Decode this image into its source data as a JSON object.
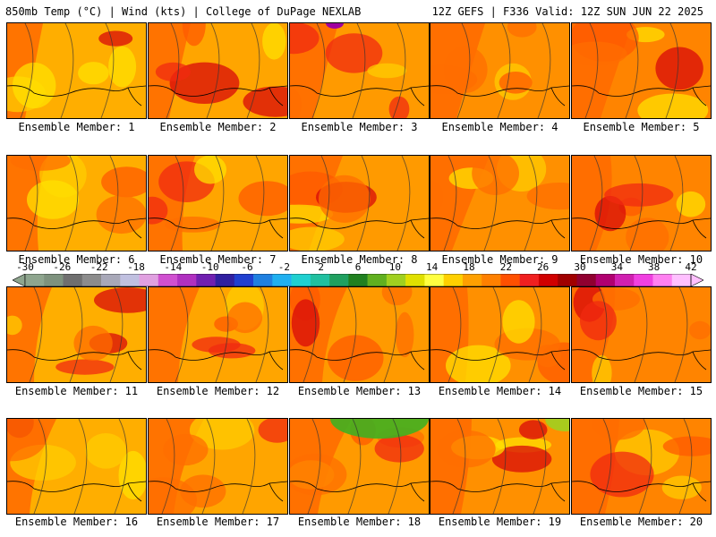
{
  "header": {
    "left_title": "850mb Temp (°C) | Wind (kts) | College of DuPage NEXLAB",
    "right_title": "12Z GEFS | F336 Valid: 12Z SUN JUN 22 2025"
  },
  "members": [
    {
      "label": "Ensemble Member: 1"
    },
    {
      "label": "Ensemble Member: 2"
    },
    {
      "label": "Ensemble Member: 3"
    },
    {
      "label": "Ensemble Member: 4"
    },
    {
      "label": "Ensemble Member: 5"
    },
    {
      "label": "Ensemble Member: 6"
    },
    {
      "label": "Ensemble Member: 7"
    },
    {
      "label": "Ensemble Member: 8"
    },
    {
      "label": "Ensemble Member: 9"
    },
    {
      "label": "Ensemble Member: 10"
    },
    {
      "label": "Ensemble Member: 11"
    },
    {
      "label": "Ensemble Member: 12"
    },
    {
      "label": "Ensemble Member: 13"
    },
    {
      "label": "Ensemble Member: 14"
    },
    {
      "label": "Ensemble Member: 15"
    },
    {
      "label": "Ensemble Member: 16"
    },
    {
      "label": "Ensemble Member: 17"
    },
    {
      "label": "Ensemble Member: 18"
    },
    {
      "label": "Ensemble Member: 19"
    },
    {
      "label": "Ensemble Member: 20"
    }
  ],
  "colorbar": {
    "labels": [
      "-30",
      "-26",
      "-22",
      "-18",
      "-14",
      "-10",
      "-6",
      "-2",
      "2",
      "6",
      "10",
      "14",
      "18",
      "22",
      "26",
      "30",
      "34",
      "38",
      "42"
    ],
    "colors": [
      "#8ea58e",
      "#7e927e",
      "#6f6f6f",
      "#8c8c8c",
      "#a8a8b8",
      "#c0c0e0",
      "#e0a0e0",
      "#d050d0",
      "#b030c0",
      "#7020b0",
      "#3020a0",
      "#2040d0",
      "#2080e0",
      "#20b0f0",
      "#20d0d0",
      "#20c0a0",
      "#20a060",
      "#208020",
      "#60b020",
      "#a0d020",
      "#e0e000",
      "#ffff40",
      "#ffd000",
      "#ffa000",
      "#ff8000",
      "#ff5000",
      "#f02020",
      "#d00000",
      "#a00000",
      "#900030",
      "#b00070",
      "#d020b0",
      "#f040e0",
      "#ff80f0",
      "#ffc0ff"
    ]
  }
}
